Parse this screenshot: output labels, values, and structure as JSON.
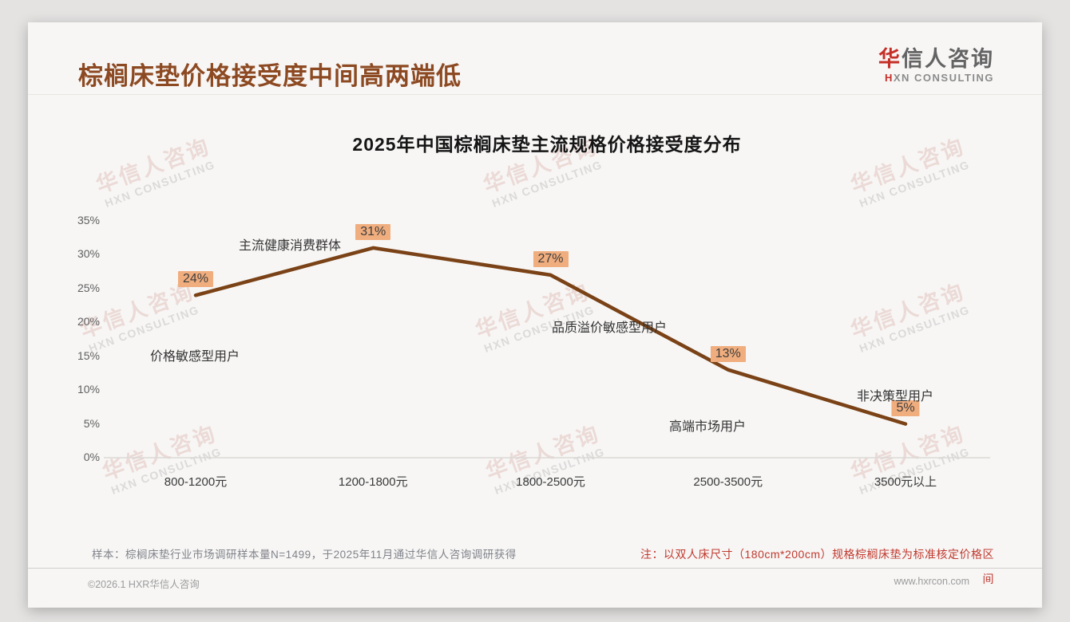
{
  "header": {
    "title": "棕榈床垫价格接受度中间高两端低"
  },
  "logo": {
    "cn_accent": "华",
    "cn_rest": "信人咨询",
    "en_accent": "H",
    "en_rest": "XN CONSULTING"
  },
  "watermark": {
    "cn": "华信人咨询",
    "en": "HXN CONSULTING"
  },
  "chart_data": {
    "type": "line",
    "title": "2025年中国棕榈床垫主流规格价格接受度分布",
    "categories": [
      "800-1200元",
      "1200-1800元",
      "1800-2500元",
      "2500-3500元",
      "3500元以上"
    ],
    "values": [
      24,
      31,
      27,
      13,
      5
    ],
    "data_labels": [
      "24%",
      "31%",
      "27%",
      "13%",
      "5%"
    ],
    "annotations": [
      "价格敏感型用户",
      "主流健康消费群体",
      "品质溢价敏感型用户",
      "高端市场用户",
      "非决策型用户"
    ],
    "yticks": [
      "35%",
      "30%",
      "25%",
      "20%",
      "15%",
      "10%",
      "5%",
      "0%"
    ],
    "ylim": [
      0,
      35
    ],
    "grid": "baseline-only",
    "legend": "none",
    "line_color": "#7a4216",
    "label_bg": "#f0ad7e",
    "xlabel": "",
    "ylabel": ""
  },
  "footer": {
    "sample_note": "样本：棕榈床垫行业市场调研样本量N=1499，于2025年11月通过华信人咨询调研获得",
    "price_note_line1": "注：以双人床尺寸（180cm*200cm）规格棕榈床垫为标准核定价格区",
    "price_note_line2": "间",
    "copyright": "©2026.1 HXR华信人咨询",
    "website": "www.hxrcon.com"
  }
}
